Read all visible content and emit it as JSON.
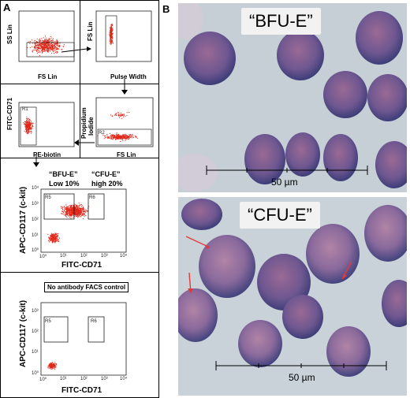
{
  "panels": {
    "a_letter": "A",
    "b_letter": "B"
  },
  "plot1": {
    "ylabel": "SS Lin",
    "xlabel": "FS Lin"
  },
  "plot2": {
    "ylabel": "FS Lin",
    "xlabel": "Pulse Width"
  },
  "plot3": {
    "ylabel": "FITC-CD71",
    "xlabel": "PE-biotin",
    "gate": "R1"
  },
  "plot4": {
    "ylabel_line1": "Propidium",
    "ylabel_line2": "Iodide",
    "xlabel": "FS Lin",
    "gate": "R2"
  },
  "plot5": {
    "ylabel": "APC-CD117 (c-kit)",
    "xlabel": "FITC-CD71",
    "bfue_label": "“BFU-E”",
    "bfue_sub": "Low 10%",
    "cfue_label": "“CFU-E”",
    "cfue_sub": "high 20%",
    "gate_r5": "R5",
    "gate_r6": "R6",
    "xticks": [
      "10⁰",
      "10¹",
      "10²",
      "10³",
      "10⁴"
    ],
    "yticks": [
      "10⁴",
      "10³",
      "10²",
      "10¹",
      "10⁰"
    ]
  },
  "plot6": {
    "title": "No antibody FACS control",
    "ylabel": "APC-CD117 (c-kit)",
    "xlabel": "FITC-CD71",
    "gate_r5": "R5",
    "gate_r6": "R6",
    "xticks": [
      "10⁰",
      "10¹",
      "10²",
      "10³",
      "10⁴"
    ],
    "yticks": [
      "10⁴",
      "10³",
      "10²",
      "10¹",
      "10⁰"
    ]
  },
  "photo_top": {
    "title": "“BFU-E”",
    "scale": "50 µm"
  },
  "photo_bottom": {
    "title": "“CFU-E”",
    "scale": "50 µm"
  },
  "colors": {
    "dots": "#e0281a",
    "cell": "#5a4f8c",
    "background": "#c8d0d6",
    "arrow": "#e23a3a"
  }
}
